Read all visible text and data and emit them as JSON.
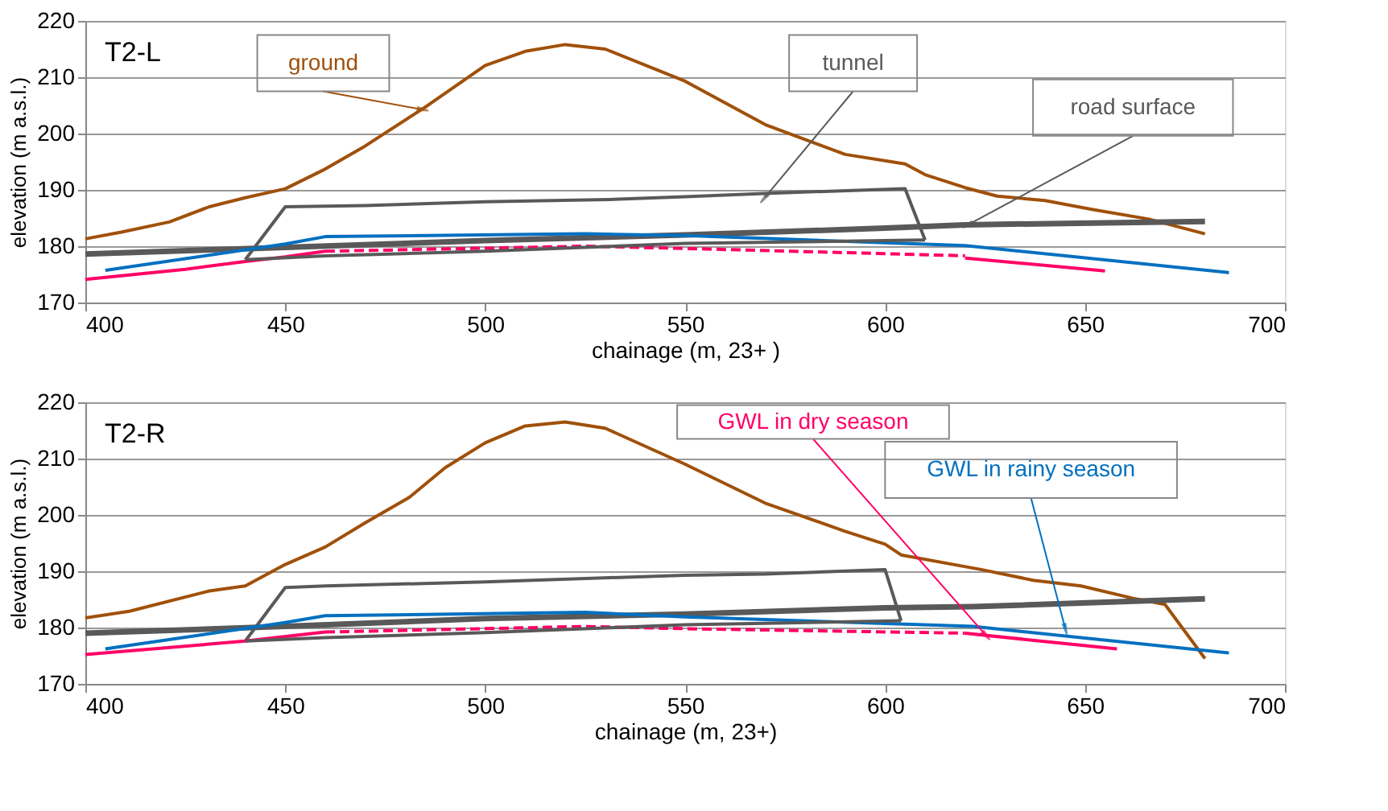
{
  "chart_data": [
    {
      "type": "line",
      "title": "T2-L",
      "xlabel": "chainage (m, 23+ )",
      "ylabel": "elevation (m a.s.l.)",
      "xlim": [
        400,
        700
      ],
      "xticks": [
        400,
        450,
        500,
        550,
        600,
        650,
        700
      ],
      "ylim": [
        170,
        220
      ],
      "yticks": [
        170,
        180,
        190,
        200,
        210,
        220
      ],
      "grid": "y",
      "marker": "none",
      "series": [
        {
          "name": "ground",
          "color": "#a0500a",
          "line_style": "solid",
          "x": [
            400,
            409,
            421,
            431,
            440,
            450,
            460,
            470,
            485,
            500,
            510,
            520,
            530,
            550,
            570,
            590,
            605,
            610,
            620,
            628,
            640,
            652,
            666,
            680
          ],
          "values": [
            181.3,
            182.5,
            184.3,
            187.0,
            188.6,
            190.2,
            193.7,
            197.8,
            204.7,
            212.1,
            214.6,
            215.8,
            215.0,
            209.3,
            201.6,
            196.3,
            194.6,
            192.7,
            190.4,
            188.9,
            188.1,
            186.5,
            184.8,
            182.2
          ]
        },
        {
          "name": "tunnel",
          "color": "#595959",
          "line_style": "solid",
          "x": [
            440,
            450,
            470,
            500,
            531,
            550,
            571,
            605,
            610
          ],
          "values": [
            177.6,
            187.0,
            187.2,
            187.9,
            188.3,
            188.8,
            189.4,
            190.2,
            181.1
          ]
        },
        {
          "name": "road surface",
          "color": "#595959",
          "line_style": "solid",
          "x": [
            400,
            450,
            500,
            550,
            600,
            620,
            680
          ],
          "values": [
            178.6,
            179.8,
            181.0,
            182.0,
            183.2,
            183.8,
            184.4
          ]
        },
        {
          "color": "#0070c0",
          "line_style": "solid",
          "x": [
            405,
            450,
            460,
            525,
            550,
            620,
            686
          ],
          "values": [
            175.7,
            180.4,
            181.7,
            182.2,
            181.9,
            180.1,
            175.3
          ]
        },
        {
          "color": "#ff0066",
          "line_style": "solid",
          "x": [
            400,
            425,
            440,
            450,
            460
          ],
          "values": [
            174.1,
            175.9,
            177.3,
            178.1,
            179.1
          ]
        },
        {
          "color": "#ff0066",
          "line_style": "dashed",
          "x": [
            460,
            525,
            550,
            620
          ],
          "values": [
            179.1,
            180.0,
            179.6,
            178.3
          ]
        },
        {
          "color": "#ff0066",
          "line_style": "solid",
          "x": [
            620,
            655
          ],
          "values": [
            177.9,
            175.6
          ]
        },
        {
          "color": "#595959",
          "line_style": "solid",
          "x": [
            440,
            460,
            500,
            550,
            610
          ],
          "values": [
            177.6,
            178.3,
            179.1,
            180.5,
            181.1
          ]
        }
      ]
    },
    {
      "type": "line",
      "title": "T2-R",
      "xlabel": "chainage (m, 23+)",
      "ylabel": "elevation (m a.s.l.)",
      "xlim": [
        400,
        700
      ],
      "xticks": [
        400,
        450,
        500,
        550,
        600,
        650,
        700
      ],
      "ylim": [
        170,
        220
      ],
      "yticks": [
        170,
        180,
        190,
        200,
        210,
        220
      ],
      "grid": "y",
      "marker": "none",
      "series": [
        {
          "color": "#a0500a",
          "line_style": "solid",
          "x": [
            400,
            411,
            431,
            440,
            450,
            460,
            470,
            481,
            490,
            500,
            510,
            520,
            530,
            550,
            570,
            590,
            600,
            604,
            624,
            637,
            649,
            662,
            670,
            680
          ],
          "values": [
            181.7,
            182.9,
            186.5,
            187.4,
            191.2,
            194.3,
            198.6,
            203.1,
            208.4,
            212.8,
            215.8,
            216.5,
            215.4,
            209.0,
            202.1,
            197.1,
            194.8,
            192.9,
            190.3,
            188.4,
            187.4,
            185.2,
            184.1,
            174.5
          ]
        },
        {
          "color": "#595959",
          "line_style": "solid",
          "x": [
            440,
            450,
            460,
            500,
            550,
            570,
            600,
            604
          ],
          "values": [
            177.6,
            187.1,
            187.4,
            188.1,
            189.3,
            189.5,
            190.3,
            181.2
          ]
        },
        {
          "color": "#595959",
          "line_style": "solid",
          "x": [
            400,
            450,
            500,
            550,
            600,
            622,
            680
          ],
          "values": [
            179.0,
            180.2,
            181.6,
            182.4,
            183.5,
            183.7,
            185.1
          ]
        },
        {
          "name": "GWL in rainy season",
          "color": "#0070c0",
          "line_style": "solid",
          "x": [
            405,
            450,
            460,
            525,
            550,
            622,
            686
          ],
          "values": [
            176.2,
            180.9,
            182.1,
            182.7,
            181.9,
            180.2,
            175.5
          ]
        },
        {
          "name": "GWL in dry season",
          "color": "#ff0066",
          "line_style": "solid",
          "x": [
            400,
            440,
            460
          ],
          "values": [
            175.2,
            177.6,
            179.2
          ]
        },
        {
          "color": "#ff0066",
          "line_style": "dashed",
          "x": [
            460,
            525,
            550,
            620
          ],
          "values": [
            179.2,
            180.2,
            179.8,
            179.0
          ]
        },
        {
          "color": "#ff0066",
          "line_style": "solid",
          "x": [
            620,
            658
          ],
          "values": [
            179.0,
            176.2
          ]
        },
        {
          "color": "#595959",
          "line_style": "solid",
          "x": [
            440,
            460,
            500,
            550,
            604
          ],
          "values": [
            177.6,
            178.2,
            179.1,
            180.5,
            181.2
          ]
        }
      ]
    }
  ]
}
